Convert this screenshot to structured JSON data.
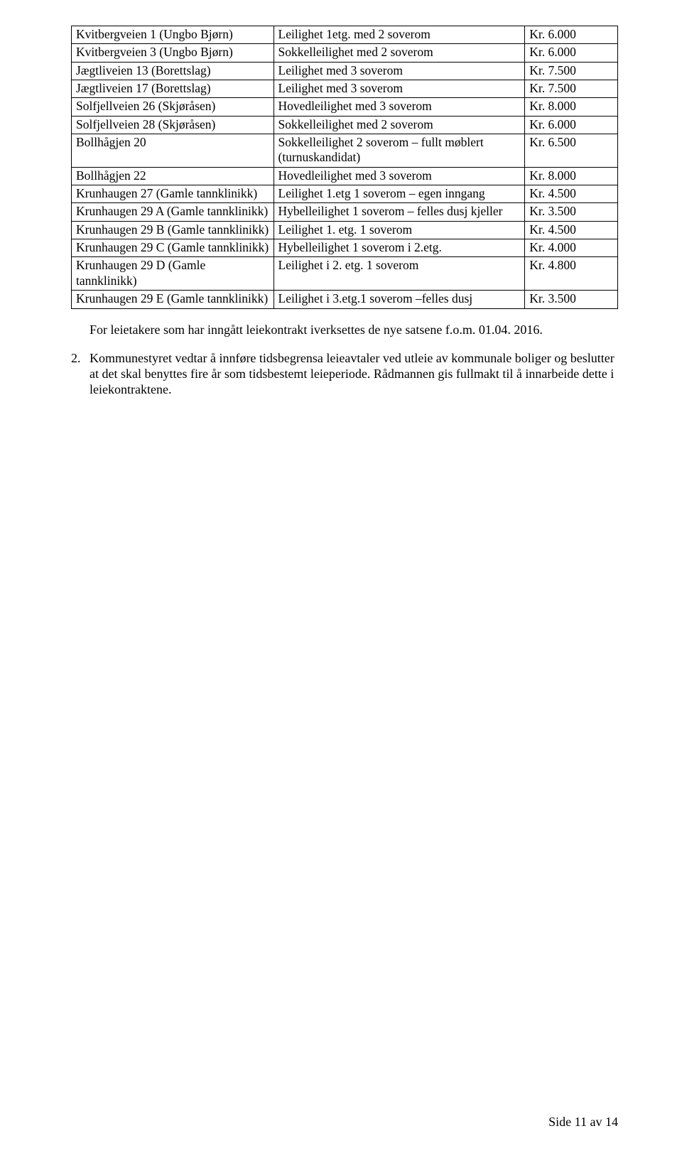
{
  "table": {
    "columns": {
      "c1_width": "37%",
      "c2_width": "46%",
      "c3_width": "17%"
    },
    "border_color": "#000000",
    "font_size_pt": 12,
    "rows": [
      {
        "address": "Kvitbergveien 1 (Ungbo Bjørn)",
        "desc": "Leilighet 1etg. med 2 soverom",
        "price": "Kr. 6.000"
      },
      {
        "address": "Kvitbergveien 3 (Ungbo Bjørn)",
        "desc": "Sokkelleilighet med 2 soverom",
        "price": "Kr. 6.000"
      },
      {
        "address": "Jægtliveien 13 (Borettslag)",
        "desc": "Leilighet med 3 soverom",
        "price": "Kr. 7.500"
      },
      {
        "address": "Jægtliveien 17 (Borettslag)",
        "desc": "Leilighet med 3 soverom",
        "price": "Kr. 7.500"
      },
      {
        "address": "Solfjellveien 26 (Skjøråsen)",
        "desc": "Hovedleilighet med 3 soverom",
        "price": "Kr. 8.000"
      },
      {
        "address": "Solfjellveien 28 (Skjøråsen)",
        "desc": "Sokkelleilighet med 2 soverom",
        "price": "Kr. 6.000"
      },
      {
        "address": "Bollhågjen 20",
        "desc": "Sokkelleilighet 2 soverom – fullt møblert (turnuskandidat)",
        "price": "Kr. 6.500"
      },
      {
        "address": "Bollhågjen 22",
        "desc": "Hovedleilighet med 3 soverom",
        "price": "Kr. 8.000"
      },
      {
        "address": "Krunhaugen 27 (Gamle tannklinikk)",
        "desc": "Leilighet 1.etg 1 soverom – egen inngang",
        "price": "Kr. 4.500"
      },
      {
        "address": "Krunhaugen 29 A (Gamle tannklinikk)",
        "desc": "Hybelleilighet 1 soverom – felles dusj kjeller",
        "price": "Kr. 3.500"
      },
      {
        "address": "Krunhaugen 29 B (Gamle tannklinikk)",
        "desc": "Leilighet 1. etg. 1 soverom",
        "price": "Kr. 4.500"
      },
      {
        "address": "Krunhaugen 29 C (Gamle tannklinikk)",
        "desc": "Hybelleilighet 1 soverom i 2.etg.",
        "price": "Kr. 4.000"
      },
      {
        "address": "Krunhaugen 29 D (Gamle tannklinikk)",
        "desc": "Leilighet i 2. etg. 1 soverom",
        "price": "Kr. 4.800"
      },
      {
        "address": "Krunhaugen 29 E (Gamle tannklinikk)",
        "desc": "Leilighet i 3.etg.1 soverom –felles dusj",
        "price": "Kr. 3.500"
      }
    ]
  },
  "paragraph1": "For leietakere som har inngått leiekontrakt iverksettes de nye satsene f.o.m. 01.04. 2016.",
  "listitem2": {
    "num": "2.",
    "text": "Kommunestyret vedtar å innføre tidsbegrensa leieavtaler ved utleie av kommunale boliger og beslutter at det skal benyttes fire år som tidsbestemt leieperiode. Rådmannen gis fullmakt til å innarbeide dette i leiekontraktene."
  },
  "footer": "Side 11 av 14"
}
